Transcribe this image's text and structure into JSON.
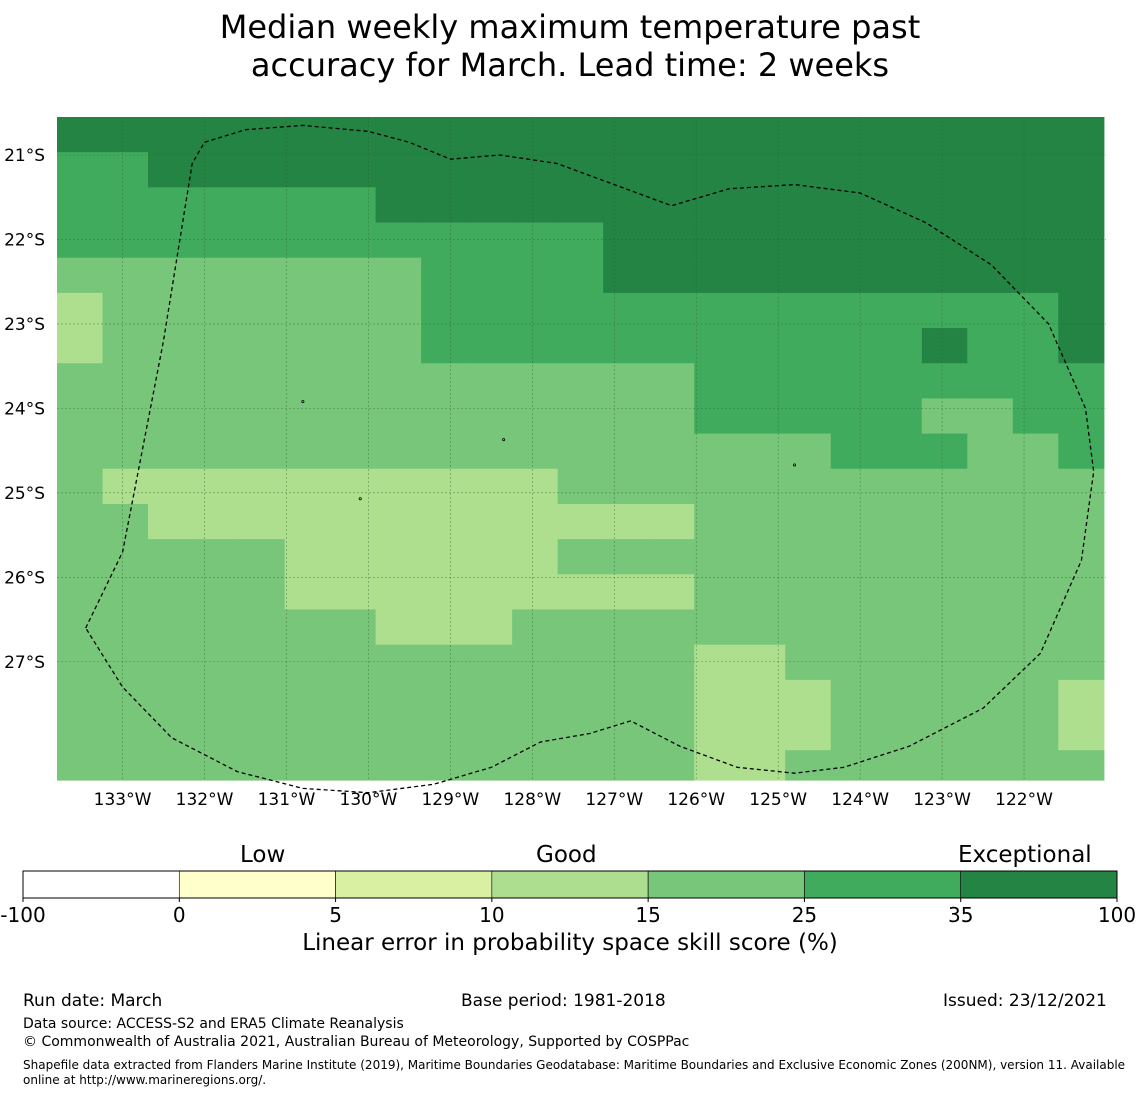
{
  "title_lines": [
    "Median weekly maximum temperature past",
    "accuracy for March. Lead time: 2 weeks"
  ],
  "map": {
    "lon_range": [
      -133.8,
      -121.0
    ],
    "lat_range": [
      -28.4,
      -20.55
    ],
    "lon_ticks": [
      "133°W",
      "132°W",
      "131°W",
      "130°W",
      "129°W",
      "128°W",
      "127°W",
      "126°W",
      "125°W",
      "124°W",
      "123°W",
      "122°W"
    ],
    "lon_tick_values": [
      -133,
      -132,
      -131,
      -130,
      -129,
      -128,
      -127,
      -126,
      -125,
      -124,
      -123,
      -122
    ],
    "lat_ticks": [
      "21°S",
      "22°S",
      "23°S",
      "24°S",
      "25°S",
      "26°S",
      "27°S"
    ],
    "lat_tick_values": [
      -21,
      -22,
      -23,
      -24,
      -25,
      -26,
      -27
    ],
    "class_colors": {
      "3": "#addf8e",
      "4": "#78c679",
      "5": "#41ab5d",
      "6": "#238443"
    },
    "grid_cell_degrees": 0.833,
    "grid_rows": [
      "66666666666666666666666",
      "55666666666666666666666",
      "55555556666666666666666",
      "55555555555566666666666",
      "44444444555566666666666",
      "34444444555555555555556",
      "34444444555555555556556",
      "44444444444444555555555",
      "44444444444444555554455",
      "44444444444444444555445",
      "43333333333444444444444",
      "44333333333333444444444",
      "44444333333444444444444",
      "44444333333333444444444",
      "44444443334444444444444",
      "44444444444444334444444",
      "44444444444444333444443",
      "44444444444444333444443",
      "44444444444444334444444",
      "44444444444444334444444",
      "44444444444444444444444",
      "44444444444444444444444",
      "44444444444444444444444",
      "44444444444444444444444",
      "44444444444444444444444",
      "44444444444444444444444",
      "44444444444444444444444",
      "44444444444444444444444",
      "44444444444444444444444",
      "44444444444444444444444"
    ]
  },
  "colorbar": {
    "categories": [
      "Low",
      "Good",
      "Exceptional"
    ],
    "tick_labels": [
      "-100",
      "0",
      "5",
      "10",
      "15",
      "25",
      "35",
      "100"
    ],
    "colors": [
      "#ffffff",
      "#ffffcc",
      "#d9f0a3",
      "#addd8e",
      "#78c679",
      "#41ab5d",
      "#238443"
    ],
    "label": "Linear error in probability space skill score (%)"
  },
  "footer": {
    "run_date": "Run date: March",
    "base_period": "Base period: 1981-2018",
    "issued": "Issued: 23/12/2021",
    "data_source": "Data source: ACCESS-S2 and ERA5 Climate Reanalysis",
    "copyright": "© Commonwealth of Australia 2021, Australian Bureau of Meteorology, Supported by COSPPac",
    "shapefile_note": "Shapefile data extracted from Flanders Marine Institute (2019), Maritime Boundaries Geodatabase: Maritime Boundaries and Exclusive Economic Zones (200NM), version 11. Available online at http://www.marineregions.org/."
  }
}
